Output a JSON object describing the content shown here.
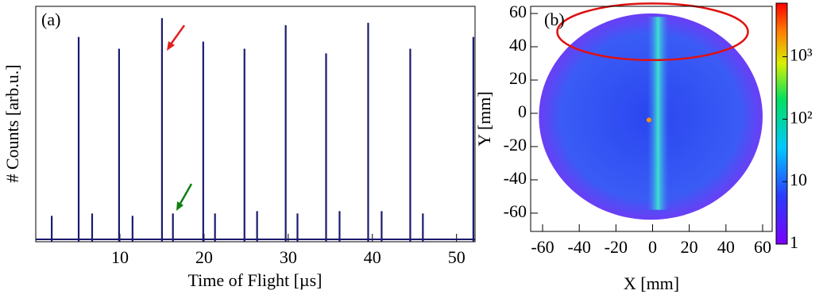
{
  "chart_data": [
    {
      "type": "line",
      "annotation": "(a)",
      "xlabel": "Time of Flight [µs]",
      "ylabel": "# Counts [arb.u.]",
      "xlim": [
        0,
        52.2
      ],
      "ylim": [
        0,
        100
      ],
      "xticks": [
        10,
        20,
        30,
        40,
        50
      ],
      "series": [
        {
          "color": "#1a1a6e",
          "x": [
            1.9,
            5.1,
            6.7,
            9.9,
            11.5,
            15.0,
            16.3,
            19.9,
            21.3,
            24.8,
            26.3,
            29.7,
            31.1,
            34.5,
            36.1,
            39.5,
            41.1,
            44.5,
            46.0,
            52.0
          ],
          "values": [
            11,
            87,
            12,
            82,
            11,
            95,
            12,
            85,
            12,
            82,
            13,
            92,
            12,
            80,
            13,
            93,
            13,
            82,
            12,
            87
          ]
        }
      ]
    },
    {
      "type": "heatmap",
      "annotation": "(b)",
      "xlabel": "X [mm]",
      "ylabel": "Y [mm]",
      "xlim": [
        -66.5,
        65.2
      ],
      "ylim": [
        -71,
        64.3
      ],
      "xticks": [
        -60,
        -40,
        -20,
        0,
        20,
        40,
        60
      ],
      "yticks": [
        -60,
        -40,
        -20,
        0,
        20,
        40,
        60
      ],
      "zscale": "log",
      "zlim": [
        1,
        7200
      ],
      "zticks": [
        1,
        10,
        {
          "value": 100,
          "label": "10²"
        },
        {
          "value": 1000,
          "label": "10³"
        }
      ]
    }
  ]
}
